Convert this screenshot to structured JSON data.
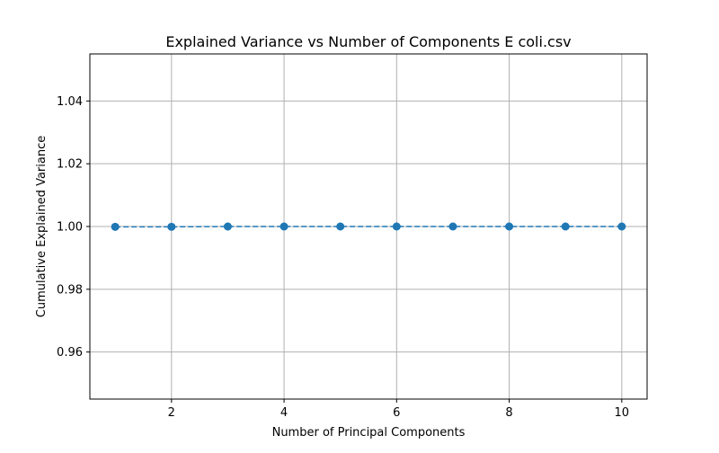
{
  "chart_data": {
    "type": "line",
    "title": "Explained Variance vs Number of Components E coli.csv",
    "xlabel": "Number of Principal Components",
    "ylabel": "Cumulative Explained Variance",
    "xlim": [
      0.55,
      10.45
    ],
    "ylim": [
      0.945,
      1.055
    ],
    "xticks": [
      2,
      4,
      6,
      8,
      10
    ],
    "yticks": [
      0.96,
      0.98,
      1.0,
      1.02,
      1.04
    ],
    "xtick_labels": [
      "2",
      "4",
      "6",
      "8",
      "10"
    ],
    "ytick_labels": [
      "0.96",
      "0.98",
      "1.00",
      "1.02",
      "1.04"
    ],
    "grid": true,
    "series": [
      {
        "x": [
          1,
          2,
          3,
          4,
          5,
          6,
          7,
          8,
          9,
          10
        ],
        "values": [
          0.9999,
          0.9999,
          1.0,
          1.0,
          1.0,
          1.0,
          1.0,
          1.0,
          1.0,
          1.0
        ],
        "color": "#1f77b4",
        "line_style": "dashed",
        "marker": "circle"
      }
    ]
  }
}
